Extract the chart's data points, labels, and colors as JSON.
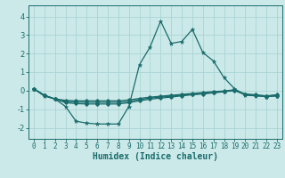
{
  "xlabel": "Humidex (Indice chaleur)",
  "bg_color": "#cce9e9",
  "grid_color": "#aad4d4",
  "line_color": "#1a6b6b",
  "xlim": [
    -0.5,
    23.5
  ],
  "ylim": [
    -2.6,
    4.6
  ],
  "yticks": [
    -2,
    -1,
    0,
    1,
    2,
    3,
    4
  ],
  "xticks": [
    0,
    1,
    2,
    3,
    4,
    5,
    6,
    7,
    8,
    9,
    10,
    11,
    12,
    13,
    14,
    15,
    16,
    17,
    18,
    19,
    20,
    21,
    22,
    23
  ],
  "line1_x": [
    0,
    1,
    2,
    3,
    4,
    5,
    6,
    7,
    8,
    9,
    10,
    11,
    12,
    13,
    14,
    15,
    16,
    17,
    18,
    19,
    20,
    21,
    22,
    23
  ],
  "line1_y": [
    0.1,
    -0.3,
    -0.45,
    -0.85,
    -1.65,
    -1.75,
    -1.8,
    -1.8,
    -1.8,
    -0.85,
    1.4,
    2.35,
    3.75,
    2.55,
    2.65,
    3.3,
    2.05,
    1.6,
    0.7,
    0.1,
    -0.25,
    -0.28,
    -0.32,
    -0.28
  ],
  "line2_x": [
    0,
    1,
    2,
    3,
    4,
    5,
    6,
    7,
    8,
    9,
    10,
    11,
    12,
    13,
    14,
    15,
    16,
    17,
    18,
    19,
    20,
    21,
    22,
    23
  ],
  "line2_y": [
    0.1,
    -0.25,
    -0.45,
    -0.52,
    -0.55,
    -0.55,
    -0.55,
    -0.55,
    -0.55,
    -0.5,
    -0.42,
    -0.35,
    -0.3,
    -0.25,
    -0.2,
    -0.15,
    -0.1,
    -0.05,
    -0.02,
    0.05,
    -0.18,
    -0.22,
    -0.28,
    -0.22
  ],
  "line3_x": [
    0,
    1,
    2,
    3,
    4,
    5,
    6,
    7,
    8,
    9,
    10,
    11,
    12,
    13,
    14,
    15,
    16,
    17,
    18,
    19,
    20,
    21,
    22,
    23
  ],
  "line3_y": [
    0.1,
    -0.25,
    -0.45,
    -0.58,
    -0.62,
    -0.63,
    -0.63,
    -0.63,
    -0.63,
    -0.58,
    -0.48,
    -0.4,
    -0.35,
    -0.3,
    -0.25,
    -0.2,
    -0.15,
    -0.1,
    -0.05,
    0.03,
    -0.2,
    -0.25,
    -0.3,
    -0.25
  ],
  "line4_x": [
    0,
    1,
    2,
    3,
    4,
    5,
    6,
    7,
    8,
    9,
    10,
    11,
    12,
    13,
    14,
    15,
    16,
    17,
    18,
    19,
    20,
    21,
    22,
    23
  ],
  "line4_y": [
    0.1,
    -0.25,
    -0.45,
    -0.65,
    -0.7,
    -0.72,
    -0.72,
    -0.72,
    -0.72,
    -0.65,
    -0.55,
    -0.46,
    -0.4,
    -0.35,
    -0.28,
    -0.22,
    -0.18,
    -0.12,
    -0.06,
    0.0,
    -0.22,
    -0.27,
    -0.33,
    -0.28
  ]
}
